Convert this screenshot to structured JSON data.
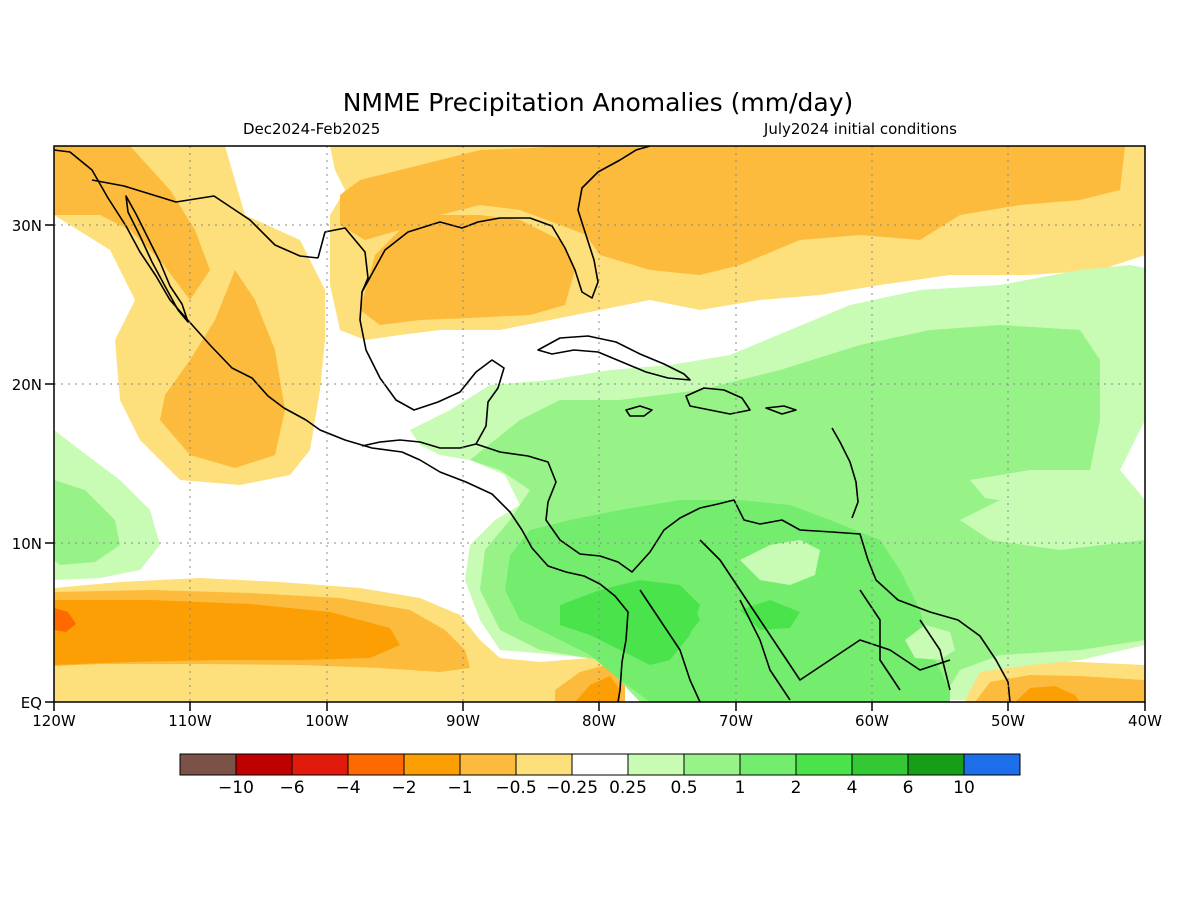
{
  "header": {
    "title": "NMME Precipitation Anomalies (mm/day)",
    "period": "Dec2024-Feb2025",
    "initial_conditions": "July2024 initial conditions"
  },
  "map": {
    "lat_labels": [
      "30N",
      "20N",
      "10N",
      "EQ"
    ],
    "lon_labels": [
      "120W",
      "110W",
      "100W",
      "90W",
      "80W",
      "70W",
      "60W",
      "50W",
      "40W"
    ],
    "lat_range": [
      0,
      35
    ],
    "lon_range": [
      -120,
      -40
    ],
    "grid": "dotted"
  },
  "colorbar": {
    "colors": [
      "#7a5247",
      "#c00000",
      "#e01b0b",
      "#ff6a00",
      "#fb9f05",
      "#fcbb3c",
      "#fde07b",
      "#ffffff",
      "#c8fbb4",
      "#97f387",
      "#74ed6e",
      "#4be34b",
      "#34c934",
      "#169f16",
      "#1d6ee9"
    ],
    "labels": [
      "−10",
      "−6",
      "−4",
      "−2",
      "−1",
      "−0.5",
      "−0.25",
      "0.25",
      "0.5",
      "1",
      "2",
      "4",
      "6",
      "10"
    ]
  },
  "palette": {
    "orange_light": "#fde07b",
    "orange_mid": "#fcbb3c",
    "orange_deep": "#fb9f05",
    "red_orange": "#ff6a00",
    "green_light": "#c8fbb4",
    "green_mid": "#97f387",
    "green_strong": "#74ed6e",
    "green_deep": "#4be34b"
  }
}
